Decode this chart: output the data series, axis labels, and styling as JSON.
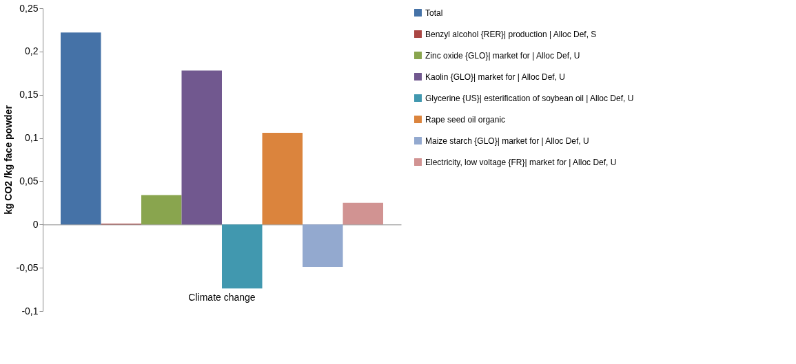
{
  "chart_data": {
    "type": "bar",
    "ylabel": "kg CO2 /kg face powder",
    "categories": [
      "Climate change"
    ],
    "ylim": [
      -0.1,
      0.25
    ],
    "yticks": [
      {
        "value": -0.1,
        "label": "-0,1"
      },
      {
        "value": -0.05,
        "label": "-0,05"
      },
      {
        "value": 0,
        "label": "0"
      },
      {
        "value": 0.05,
        "label": "0,05"
      },
      {
        "value": 0.1,
        "label": "0,1"
      },
      {
        "value": 0.15,
        "label": "0,15"
      },
      {
        "value": 0.2,
        "label": "0,2"
      },
      {
        "value": 0.25,
        "label": "0,25"
      }
    ],
    "legend": "right",
    "series": [
      {
        "name": "Total",
        "color": "#4572a7",
        "values": [
          0.222
        ]
      },
      {
        "name": "Benzyl alcohol {RER}| production | Alloc Def, S",
        "color": "#aa4643",
        "values": [
          0.001
        ]
      },
      {
        "name": "Zinc oxide {GLO}| market for | Alloc Def, U",
        "color": "#89a54e",
        "values": [
          0.034
        ]
      },
      {
        "name": "Kaolin {GLO}| market for | Alloc Def, U",
        "color": "#71588f",
        "values": [
          0.178
        ]
      },
      {
        "name": "Glycerine {US}| esterification of soybean oil | Alloc Def, U",
        "color": "#4198af",
        "values": [
          -0.074
        ]
      },
      {
        "name": "Rape seed oil organic",
        "color": "#db843d",
        "values": [
          0.106
        ]
      },
      {
        "name": "Maize starch {GLO}| market for | Alloc Def, U",
        "color": "#93a9cf",
        "values": [
          -0.049
        ]
      },
      {
        "name": "Electricity, low voltage {FR}| market for | Alloc Def, U",
        "color": "#d19392",
        "values": [
          0.025
        ]
      }
    ]
  }
}
